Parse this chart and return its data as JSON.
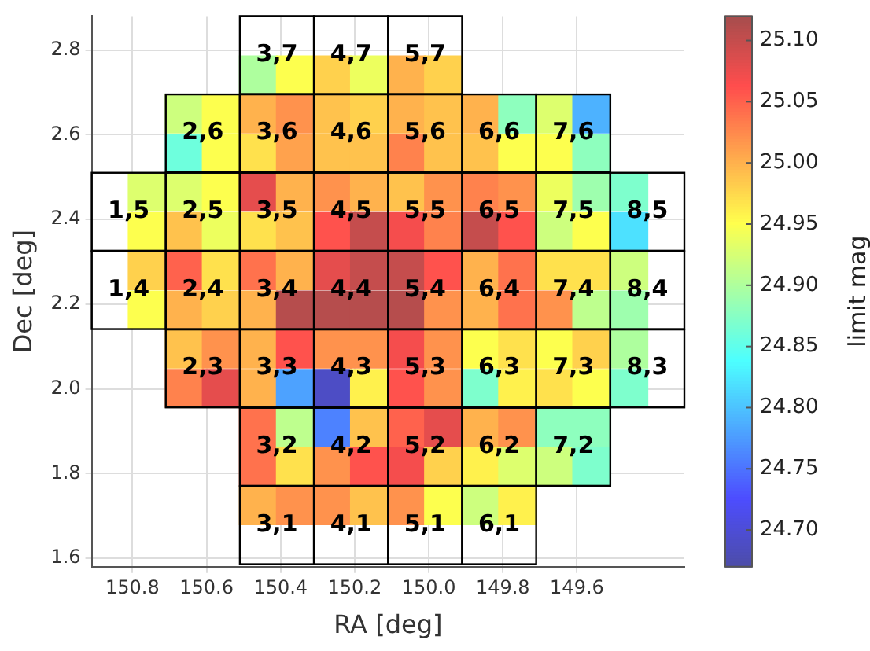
{
  "chart_data": {
    "type": "scatter",
    "xlabel": "RA [deg]",
    "ylabel": "Dec [deg]",
    "clabel": "limit mag",
    "marker": "square",
    "grid": true,
    "xlim": [
      150.91,
      149.31
    ],
    "xticks": [
      150.8,
      150.6,
      150.4,
      150.2,
      {
        "value": 150.0,
        "label": "150.0"
      },
      149.8,
      149.6
    ],
    "ylim": [
      1.58,
      2.88
    ],
    "yticks": [
      1.6,
      1.8,
      {
        "value": 2.0,
        "label": "2.0"
      },
      2.2,
      2.4,
      2.6,
      2.8
    ],
    "clim": [
      24.67,
      25.12
    ],
    "cticks": [
      {
        "value": 24.7,
        "label": "24.70"
      },
      24.75,
      {
        "value": 24.8,
        "label": "24.80"
      },
      24.85,
      {
        "value": 24.9,
        "label": "24.90"
      },
      24.95,
      {
        "value": 25.0,
        "label": "25.00"
      },
      25.05,
      {
        "value": 25.1,
        "label": "25.10"
      }
    ],
    "x": [
      150.46,
      150.36,
      150.26,
      150.16,
      150.06,
      149.96,
      150.66,
      150.56,
      150.46,
      150.36,
      150.26,
      150.16,
      150.06,
      149.96,
      149.86,
      149.76,
      149.66,
      149.56,
      150.66,
      150.56,
      150.46,
      150.36,
      150.26,
      150.16,
      150.06,
      149.96,
      149.86,
      149.76,
      149.66,
      149.56,
      150.76,
      150.66,
      150.56,
      150.46,
      150.36,
      150.26,
      150.16,
      150.06,
      149.96,
      149.86,
      149.76,
      149.66,
      149.56,
      149.46,
      150.76,
      150.66,
      150.56,
      150.46,
      150.36,
      150.26,
      150.16,
      150.06,
      149.96,
      149.86,
      149.76,
      149.66,
      149.56,
      149.46,
      150.76,
      150.66,
      150.56,
      150.46,
      150.36,
      150.26,
      150.16,
      150.06,
      149.96,
      149.86,
      149.76,
      149.66,
      149.56,
      149.46,
      150.76,
      150.66,
      150.56,
      150.46,
      150.36,
      150.26,
      150.16,
      150.06,
      149.96,
      149.86,
      149.76,
      149.66,
      149.56,
      149.46,
      150.66,
      150.56,
      150.46,
      150.36,
      150.26,
      150.16,
      150.06,
      149.96,
      149.86,
      149.76,
      149.66,
      149.56,
      149.46,
      150.66,
      150.56,
      150.46,
      150.36,
      150.26,
      150.16,
      150.06,
      149.96,
      149.86,
      149.76,
      149.66,
      149.56,
      149.46,
      150.46,
      150.36,
      150.26,
      150.16,
      150.06,
      149.96,
      149.86,
      149.76,
      149.66,
      149.56,
      150.46,
      150.36,
      150.26,
      150.16,
      150.06,
      149.96,
      149.86,
      149.76,
      149.66,
      149.56,
      150.46,
      150.36,
      150.26,
      150.16,
      150.06,
      149.96,
      149.86,
      149.76
    ],
    "values": [
      2.741,
      2.741,
      2.741,
      2.741,
      2.741,
      2.741,
      2.649,
      2.649,
      2.649,
      2.649,
      2.649,
      2.649,
      2.649,
      2.649,
      2.649,
      2.649,
      2.649,
      2.649,
      2.556,
      2.556,
      2.556,
      2.556,
      2.556,
      2.556,
      2.556,
      2.556,
      2.556,
      2.556,
      2.556,
      2.556,
      2.464,
      2.464,
      2.464,
      2.464,
      2.464,
      2.464,
      2.464,
      2.464,
      2.464,
      2.464,
      2.464,
      2.464,
      2.464,
      2.464,
      2.371,
      2.371,
      2.371,
      2.371,
      2.371,
      2.371,
      2.371,
      2.371,
      2.371,
      2.371,
      2.371,
      2.371,
      2.371,
      2.371,
      2.279,
      2.279,
      2.279,
      2.279,
      2.279,
      2.279,
      2.279,
      2.279,
      2.279,
      2.279,
      2.279,
      2.279,
      2.279,
      2.279,
      2.186,
      2.186,
      2.186,
      2.186,
      2.186,
      2.186,
      2.186,
      2.186,
      2.186,
      2.186,
      2.186,
      2.186,
      2.186,
      2.186,
      2.094,
      2.094,
      2.094,
      2.094,
      2.094,
      2.094,
      2.094,
      2.094,
      2.094,
      2.094,
      2.094,
      2.094,
      2.094,
      2.001,
      2.001,
      2.001,
      2.001,
      2.001,
      2.001,
      2.001,
      2.001,
      2.001,
      2.001,
      2.001,
      2.001,
      2.001,
      1.909,
      1.909,
      1.909,
      1.909,
      1.909,
      1.909,
      1.909,
      1.909,
      1.909,
      1.909,
      1.816,
      1.816,
      1.816,
      1.816,
      1.816,
      1.816,
      1.816,
      1.816,
      1.816,
      1.816,
      1.724,
      1.724,
      1.724,
      1.724,
      1.724,
      1.724,
      1.724,
      1.724
    ],
    "cvalues": [
      24.9,
      24.95,
      24.98,
      24.94,
      25.0,
      24.98,
      24.92,
      24.95,
      25.0,
      25.02,
      24.99,
      24.98,
      25.0,
      24.99,
      25.0,
      24.88,
      24.93,
      24.79,
      24.86,
      24.95,
      24.97,
      25.01,
      24.99,
      24.99,
      25.03,
      24.99,
      24.99,
      24.95,
      24.95,
      24.88,
      24.93,
      24.93,
      24.95,
      25.08,
      25.0,
      25.02,
      25.0,
      24.99,
      25.02,
      25.03,
      25.02,
      24.94,
      24.89,
      24.87,
      24.95,
      24.99,
      24.94,
      24.97,
      24.99,
      25.06,
      25.1,
      25.07,
      25.03,
      25.1,
      25.06,
      24.92,
      24.95,
      24.82,
      24.98,
      25.05,
      24.97,
      25.04,
      25.0,
      25.08,
      25.1,
      25.1,
      25.06,
      25.0,
      25.04,
      24.97,
      24.97,
      24.92,
      24.95,
      25.0,
      24.98,
      25.0,
      25.11,
      25.11,
      25.11,
      25.11,
      25.02,
      25.0,
      25.04,
      25.02,
      24.91,
      24.89,
      24.99,
      25.02,
      25.0,
      25.06,
      25.02,
      25.02,
      25.07,
      25.02,
      24.95,
      24.97,
      24.95,
      24.98,
      24.9,
      25.03,
      25.08,
      25.0,
      24.78,
      24.69,
      24.96,
      25.06,
      25.02,
      24.87,
      24.96,
      24.97,
      24.95,
      24.87,
      25.04,
      24.91,
      24.76,
      24.99,
      25.05,
      25.08,
      25.0,
      25.02,
      24.88,
      24.88,
      25.04,
      24.97,
      25.02,
      25.06,
      25.07,
      24.98,
      24.96,
      24.93,
      24.92,
      24.87,
      25.0,
      25.02,
      25.02,
      24.99,
      25.02,
      24.95,
      24.92,
      24.96
    ],
    "annotations": [
      {
        "text": "3,7",
        "x": 150.41,
        "y": 2.788
      },
      {
        "text": "4,7",
        "x": 150.21,
        "y": 2.788
      },
      {
        "text": "5,7",
        "x": 150.01,
        "y": 2.788
      },
      {
        "text": "2,6",
        "x": 150.61,
        "y": 2.603
      },
      {
        "text": "3,6",
        "x": 150.41,
        "y": 2.603
      },
      {
        "text": "4,6",
        "x": 150.21,
        "y": 2.603
      },
      {
        "text": "5,6",
        "x": 150.01,
        "y": 2.603
      },
      {
        "text": "6,6",
        "x": 149.81,
        "y": 2.603
      },
      {
        "text": "7,6",
        "x": 149.61,
        "y": 2.603
      },
      {
        "text": "1,5",
        "x": 150.81,
        "y": 2.418
      },
      {
        "text": "2,5",
        "x": 150.61,
        "y": 2.418
      },
      {
        "text": "3,5",
        "x": 150.41,
        "y": 2.418
      },
      {
        "text": "4,5",
        "x": 150.21,
        "y": 2.418
      },
      {
        "text": "5,5",
        "x": 150.01,
        "y": 2.418
      },
      {
        "text": "6,5",
        "x": 149.81,
        "y": 2.418
      },
      {
        "text": "7,5",
        "x": 149.61,
        "y": 2.418
      },
      {
        "text": "8,5",
        "x": 149.41,
        "y": 2.418
      },
      {
        "text": "1,4",
        "x": 150.81,
        "y": 2.233
      },
      {
        "text": "2,4",
        "x": 150.61,
        "y": 2.233
      },
      {
        "text": "3,4",
        "x": 150.41,
        "y": 2.233
      },
      {
        "text": "4,4",
        "x": 150.21,
        "y": 2.233
      },
      {
        "text": "5,4",
        "x": 150.01,
        "y": 2.233
      },
      {
        "text": "6,4",
        "x": 149.81,
        "y": 2.233
      },
      {
        "text": "7,4",
        "x": 149.61,
        "y": 2.233
      },
      {
        "text": "8,4",
        "x": 149.41,
        "y": 2.233
      },
      {
        "text": "2,3",
        "x": 150.61,
        "y": 2.048
      },
      {
        "text": "3,3",
        "x": 150.41,
        "y": 2.048
      },
      {
        "text": "4,3",
        "x": 150.21,
        "y": 2.048
      },
      {
        "text": "5,3",
        "x": 150.01,
        "y": 2.048
      },
      {
        "text": "6,3",
        "x": 149.81,
        "y": 2.048
      },
      {
        "text": "7,3",
        "x": 149.61,
        "y": 2.048
      },
      {
        "text": "8,3",
        "x": 149.41,
        "y": 2.048
      },
      {
        "text": "3,2",
        "x": 150.41,
        "y": 1.863
      },
      {
        "text": "4,2",
        "x": 150.21,
        "y": 1.863
      },
      {
        "text": "5,2",
        "x": 150.01,
        "y": 1.863
      },
      {
        "text": "6,2",
        "x": 149.81,
        "y": 1.863
      },
      {
        "text": "7,2",
        "x": 149.61,
        "y": 1.863
      },
      {
        "text": "3,1",
        "x": 150.41,
        "y": 1.678
      },
      {
        "text": "4,1",
        "x": 150.21,
        "y": 1.678
      },
      {
        "text": "5,1",
        "x": 150.01,
        "y": 1.678
      },
      {
        "text": "6,1",
        "x": 149.81,
        "y": 1.678
      }
    ]
  }
}
